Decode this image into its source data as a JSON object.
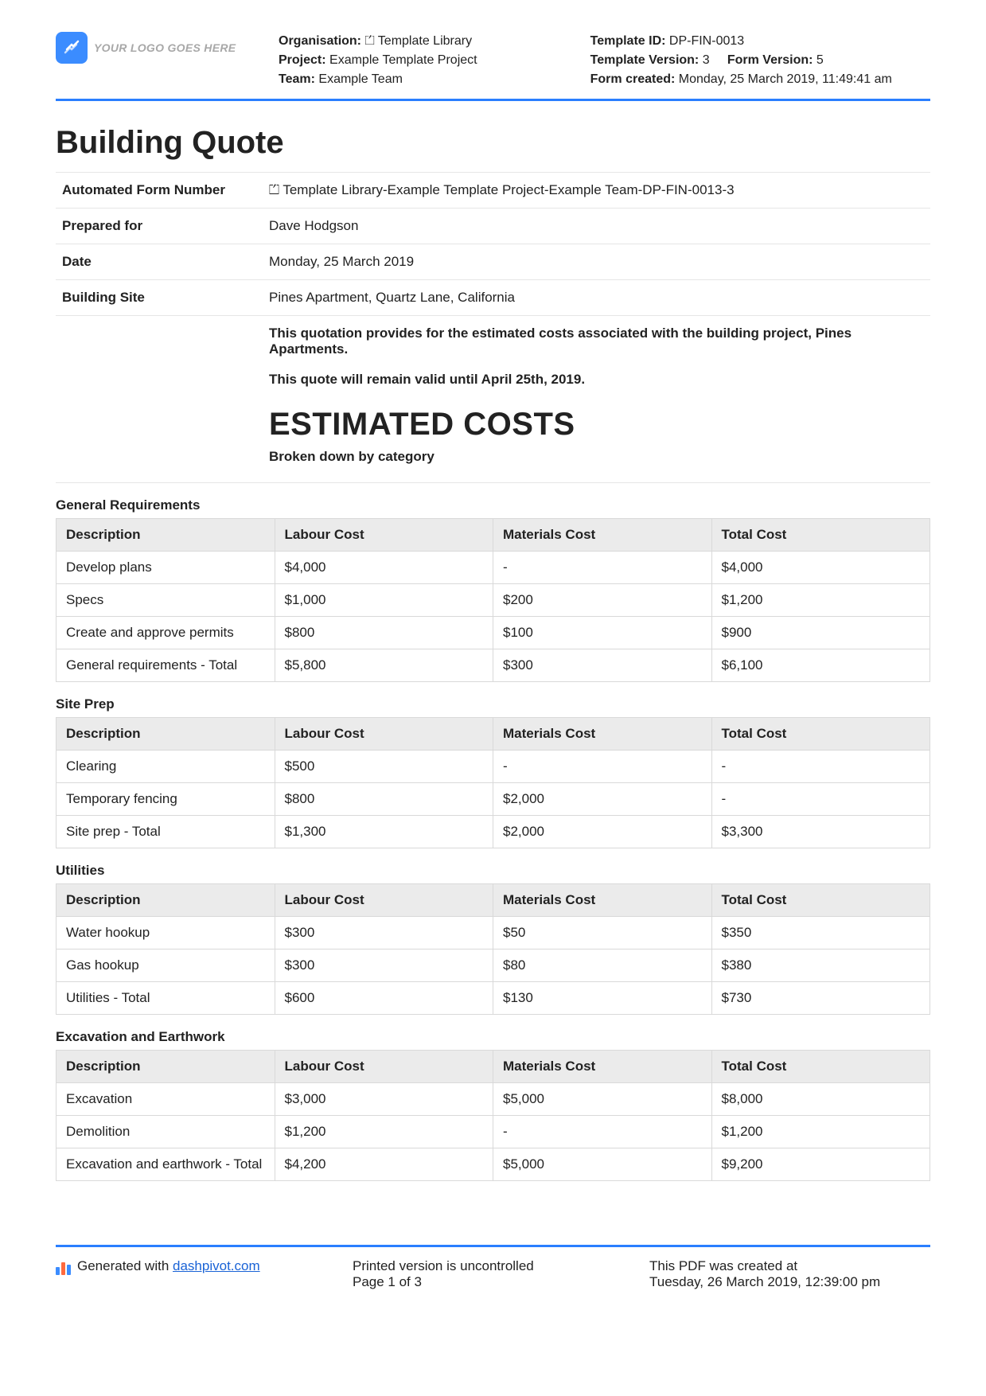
{
  "header": {
    "logo_text": "YOUR LOGO GOES HERE",
    "org_label": "Organisation:",
    "org_value": "⏍ Template Library",
    "project_label": "Project:",
    "project_value": "Example Template Project",
    "team_label": "Team:",
    "team_value": "Example Team",
    "template_id_label": "Template ID:",
    "template_id_value": "DP-FIN-0013",
    "template_version_label": "Template Version:",
    "template_version_value": "3",
    "form_version_label": "Form Version:",
    "form_version_value": "5",
    "form_created_label": "Form created:",
    "form_created_value": "Monday, 25 March 2019, 11:49:41 am"
  },
  "title": "Building Quote",
  "info": {
    "form_number_label": "Automated Form Number",
    "form_number_value": "⏍ Template Library-Example Template Project-Example Team-DP-FIN-0013-3",
    "prepared_for_label": "Prepared for",
    "prepared_for_value": "Dave Hodgson",
    "date_label": "Date",
    "date_value": "Monday, 25 March 2019",
    "site_label": "Building Site",
    "site_value": "Pines Apartment, Quartz Lane, California",
    "note1": "This quotation provides for the estimated costs associated with the building project, Pines Apartments.",
    "note2": "This quote will remain valid until April 25th, 2019."
  },
  "estimated": {
    "title": "ESTIMATED COSTS",
    "subtitle": "Broken down by category"
  },
  "cols": {
    "desc": "Description",
    "labour": "Labour Cost",
    "materials": "Materials Cost",
    "total": "Total Cost"
  },
  "sections": [
    {
      "title": "General Requirements",
      "rows": [
        {
          "desc": "Develop plans",
          "labour": "$4,000",
          "materials": "-",
          "total": "$4,000"
        },
        {
          "desc": "Specs",
          "labour": "$1,000",
          "materials": "$200",
          "total": "$1,200"
        },
        {
          "desc": "Create and approve permits",
          "labour": "$800",
          "materials": "$100",
          "total": "$900"
        },
        {
          "desc": "General requirements - Total",
          "labour": "$5,800",
          "materials": "$300",
          "total": "$6,100"
        }
      ]
    },
    {
      "title": "Site Prep",
      "rows": [
        {
          "desc": "Clearing",
          "labour": "$500",
          "materials": "-",
          "total": "-"
        },
        {
          "desc": "Temporary fencing",
          "labour": "$800",
          "materials": "$2,000",
          "total": "-"
        },
        {
          "desc": "Site prep - Total",
          "labour": "$1,300",
          "materials": "$2,000",
          "total": "$3,300"
        }
      ]
    },
    {
      "title": "Utilities",
      "rows": [
        {
          "desc": "Water hookup",
          "labour": "$300",
          "materials": "$50",
          "total": "$350"
        },
        {
          "desc": "Gas hookup",
          "labour": "$300",
          "materials": "$80",
          "total": "$380"
        },
        {
          "desc": "Utilities - Total",
          "labour": "$600",
          "materials": "$130",
          "total": "$730"
        }
      ]
    },
    {
      "title": "Excavation and Earthwork",
      "rows": [
        {
          "desc": "Excavation",
          "labour": "$3,000",
          "materials": "$5,000",
          "total": "$8,000"
        },
        {
          "desc": "Demolition",
          "labour": "$1,200",
          "materials": "-",
          "total": "$1,200"
        },
        {
          "desc": "Excavation and earthwork - Total",
          "labour": "$4,200",
          "materials": "$5,000",
          "total": "$9,200"
        }
      ]
    }
  ],
  "footer": {
    "generated_label": "Generated with ",
    "generated_link": "dashpivot.com",
    "printed_line1": "Printed version is uncontrolled",
    "printed_line2": "Page 1 of 3",
    "created_line1": "This PDF was created at",
    "created_line2": "Tuesday, 26 March 2019, 12:39:00 pm"
  }
}
